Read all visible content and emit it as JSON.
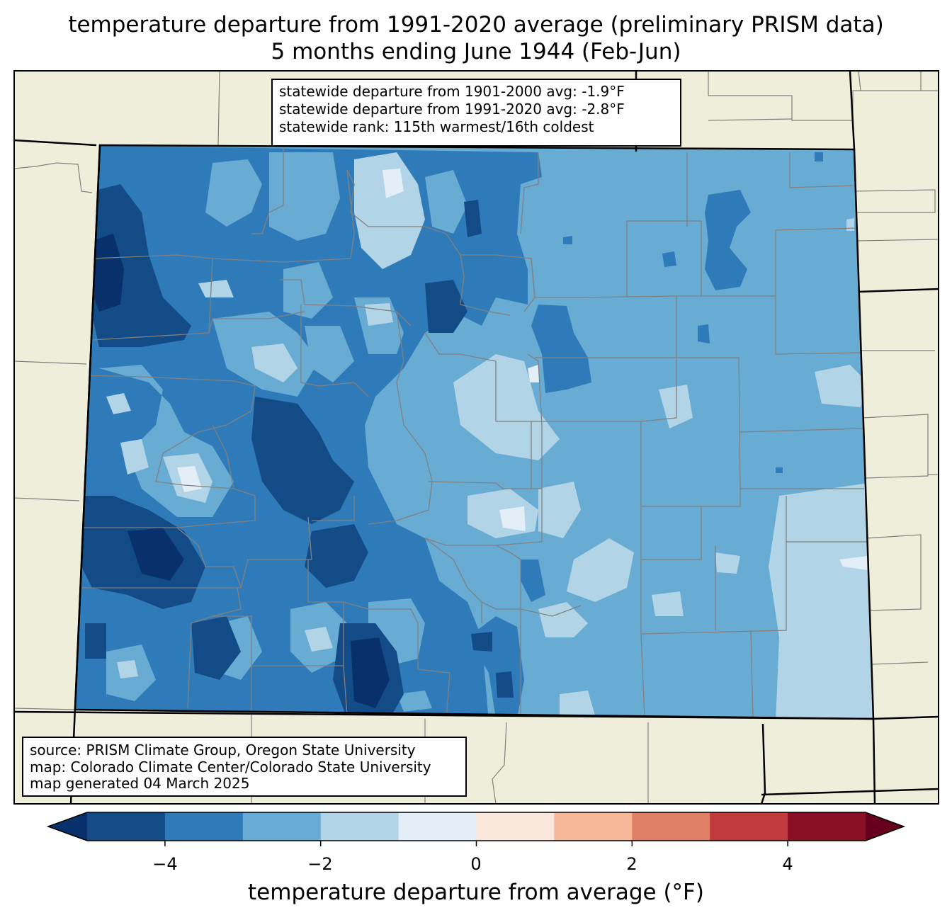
{
  "title": {
    "line1": "temperature departure from 1991-2020 average (preliminary PRISM data)",
    "line2": "5 months ending June 1944 (Feb-Jun)"
  },
  "stats": {
    "line1": "statewide departure from 1901-2000 avg: -1.9°F",
    "line2": "statewide departure from 1991-2020 avg: -2.8°F",
    "line3": "statewide rank: 115th warmest/16th coldest"
  },
  "credits": {
    "line1": "source: PRISM Climate Group, Oregon State University",
    "line2": "map: Colorado Climate Center/Colorado State University",
    "line3": "map generated 04 March 2025"
  },
  "colorbar": {
    "label": "temperature departure from average (°F)",
    "ticks": [
      "−4",
      "−2",
      "0",
      "2",
      "4"
    ],
    "bins": [
      -5,
      -4,
      -3,
      -2,
      -1,
      0,
      1,
      2,
      3,
      4,
      5
    ],
    "colors": [
      "#08306b",
      "#134b87",
      "#2f7bb9",
      "#68abd3",
      "#b1d4e7",
      "#e4eef6",
      "#fae8dd",
      "#f7b799",
      "#e07f66",
      "#c03a3e",
      "#880f24",
      "#67001f"
    ]
  },
  "map_colors": {
    "land": "#efeedb",
    "base": "#68abd3",
    "lighter": "#b1d4e7",
    "lightest": "#e4eef6",
    "darker": "#2f7bb9",
    "darkest": "#134b87",
    "deepest": "#08306b",
    "county_lines": "#808080"
  }
}
